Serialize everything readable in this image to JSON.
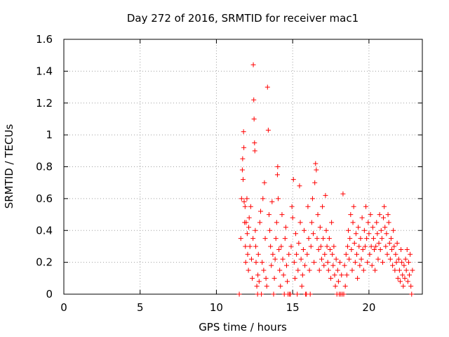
{
  "chart_data": {
    "type": "scatter",
    "title": "Day 272 of 2016, SRMTID for receiver mac1",
    "xlabel": "GPS time / hours",
    "ylabel": "SRMTID / TECUs",
    "xlim": [
      0,
      23.5
    ],
    "ylim": [
      0,
      1.6
    ],
    "xticks": [
      0,
      5,
      10,
      15,
      20
    ],
    "xtick_labels": [
      "0",
      "5",
      "10",
      "15",
      "20"
    ],
    "yticks": [
      0,
      0.2,
      0.4,
      0.6,
      0.8,
      1,
      1.2,
      1.4,
      1.6
    ],
    "ytick_labels": [
      "0",
      "0.2",
      "0.4",
      "0.6",
      "0.8",
      "1",
      "1.2",
      "1.4",
      "1.6"
    ],
    "grid": true,
    "marker": "+",
    "color": "#ff0000",
    "series": [
      {
        "name": "SRMTID",
        "points": [
          [
            11.5,
            0.0
          ],
          [
            11.6,
            0.35
          ],
          [
            11.65,
            0.6
          ],
          [
            11.7,
            0.78
          ],
          [
            11.72,
            0.85
          ],
          [
            11.75,
            0.72
          ],
          [
            11.78,
            1.02
          ],
          [
            11.8,
            0.92
          ],
          [
            11.82,
            0.58
          ],
          [
            11.85,
            0.45
          ],
          [
            11.88,
            0.55
          ],
          [
            11.9,
            0.3
          ],
          [
            11.92,
            0.2
          ],
          [
            11.95,
            0.45
          ],
          [
            12.0,
            0.6
          ],
          [
            12.02,
            0.38
          ],
          [
            12.05,
            0.25
          ],
          [
            12.1,
            0.15
          ],
          [
            12.12,
            0.42
          ],
          [
            12.15,
            0.48
          ],
          [
            12.2,
            0.3
          ],
          [
            12.25,
            0.55
          ],
          [
            12.3,
            0.22
          ],
          [
            12.35,
            0.1
          ],
          [
            12.4,
            0.35
          ],
          [
            12.42,
            1.44
          ],
          [
            12.45,
            1.22
          ],
          [
            12.47,
            1.1
          ],
          [
            12.5,
            0.95
          ],
          [
            12.52,
            0.9
          ],
          [
            12.55,
            0.4
          ],
          [
            12.58,
            0.3
          ],
          [
            12.6,
            0.2
          ],
          [
            12.65,
            0.05
          ],
          [
            12.7,
            0.0
          ],
          [
            12.72,
            0.12
          ],
          [
            12.75,
            0.25
          ],
          [
            12.8,
            0.08
          ],
          [
            12.85,
            0.45
          ],
          [
            12.9,
            0.52
          ],
          [
            12.95,
            0.0
          ],
          [
            13.0,
            0.2
          ],
          [
            13.05,
            0.6
          ],
          [
            13.1,
            0.15
          ],
          [
            13.15,
            0.7
          ],
          [
            13.2,
            0.35
          ],
          [
            13.25,
            0.1
          ],
          [
            13.3,
            0.05
          ],
          [
            13.35,
            1.3
          ],
          [
            13.4,
            1.03
          ],
          [
            13.45,
            0.5
          ],
          [
            13.5,
            0.4
          ],
          [
            13.55,
            0.3
          ],
          [
            13.6,
            0.18
          ],
          [
            13.65,
            0.58
          ],
          [
            13.7,
            0.25
          ],
          [
            13.75,
            0.0
          ],
          [
            13.8,
            0.1
          ],
          [
            13.85,
            0.22
          ],
          [
            13.9,
            0.35
          ],
          [
            13.95,
            0.45
          ],
          [
            14.0,
            0.75
          ],
          [
            14.02,
            0.8
          ],
          [
            14.05,
            0.6
          ],
          [
            14.1,
            0.28
          ],
          [
            14.15,
            0.15
          ],
          [
            14.2,
            0.05
          ],
          [
            14.25,
            0.3
          ],
          [
            14.3,
            0.5
          ],
          [
            14.35,
            0.22
          ],
          [
            14.4,
            0.12
          ],
          [
            14.45,
            0.0
          ],
          [
            14.5,
            0.35
          ],
          [
            14.55,
            0.42
          ],
          [
            14.6,
            0.18
          ],
          [
            14.65,
            0.08
          ],
          [
            14.7,
            0.0
          ],
          [
            14.75,
            0.25
          ],
          [
            14.8,
            0.0
          ],
          [
            14.85,
            0.0
          ],
          [
            14.9,
            0.3
          ],
          [
            14.95,
            0.55
          ],
          [
            15.0,
            0.48
          ],
          [
            15.05,
            0.72
          ],
          [
            15.1,
            0.2
          ],
          [
            15.15,
            0.1
          ],
          [
            15.2,
            0.38
          ],
          [
            15.25,
            0.25
          ],
          [
            15.3,
            0.0
          ],
          [
            15.35,
            0.15
          ],
          [
            15.4,
            0.32
          ],
          [
            15.45,
            0.68
          ],
          [
            15.5,
            0.45
          ],
          [
            15.55,
            0.22
          ],
          [
            15.6,
            0.05
          ],
          [
            15.65,
            0.12
          ],
          [
            15.7,
            0.28
          ],
          [
            15.75,
            0.4
          ],
          [
            15.8,
            0.18
          ],
          [
            15.85,
            0.0
          ],
          [
            15.9,
            0.0
          ],
          [
            15.95,
            0.25
          ],
          [
            16.0,
            0.55
          ],
          [
            16.05,
            0.35
          ],
          [
            16.1,
            0.15
          ],
          [
            16.15,
            0.0
          ],
          [
            16.2,
            0.3
          ],
          [
            16.25,
            0.45
          ],
          [
            16.3,
            0.6
          ],
          [
            16.35,
            0.38
          ],
          [
            16.4,
            0.2
          ],
          [
            16.45,
            0.7
          ],
          [
            16.5,
            0.82
          ],
          [
            16.55,
            0.78
          ],
          [
            16.6,
            0.35
          ],
          [
            16.65,
            0.5
          ],
          [
            16.7,
            0.28
          ],
          [
            16.75,
            0.15
          ],
          [
            16.8,
            0.42
          ],
          [
            16.85,
            0.3
          ],
          [
            16.9,
            0.22
          ],
          [
            16.95,
            0.55
          ],
          [
            17.0,
            0.35
          ],
          [
            17.05,
            0.18
          ],
          [
            17.1,
            0.25
          ],
          [
            17.15,
            0.62
          ],
          [
            17.2,
            0.4
          ],
          [
            17.25,
            0.3
          ],
          [
            17.3,
            0.2
          ],
          [
            17.35,
            0.15
          ],
          [
            17.4,
            0.35
          ],
          [
            17.45,
            0.28
          ],
          [
            17.5,
            0.1
          ],
          [
            17.55,
            0.45
          ],
          [
            17.6,
            0.25
          ],
          [
            17.65,
            0.18
          ],
          [
            17.7,
            0.3
          ],
          [
            17.75,
            0.12
          ],
          [
            17.8,
            0.05
          ],
          [
            17.85,
            0.22
          ],
          [
            17.9,
            0.0
          ],
          [
            17.95,
            0.15
          ],
          [
            18.0,
            0.08
          ],
          [
            18.05,
            0.0
          ],
          [
            18.1,
            0.2
          ],
          [
            18.15,
            0.0
          ],
          [
            18.2,
            0.12
          ],
          [
            18.25,
            0.0
          ],
          [
            18.3,
            0.63
          ],
          [
            18.35,
            0.0
          ],
          [
            18.4,
            0.18
          ],
          [
            18.45,
            0.05
          ],
          [
            18.5,
            0.25
          ],
          [
            18.55,
            0.12
          ],
          [
            18.6,
            0.3
          ],
          [
            18.65,
            0.4
          ],
          [
            18.7,
            0.22
          ],
          [
            18.75,
            0.35
          ],
          [
            18.8,
            0.5
          ],
          [
            18.85,
            0.28
          ],
          [
            18.9,
            0.15
          ],
          [
            18.95,
            0.45
          ],
          [
            19.0,
            0.55
          ],
          [
            19.05,
            0.32
          ],
          [
            19.1,
            0.2
          ],
          [
            19.15,
            0.38
          ],
          [
            19.2,
            0.25
          ],
          [
            19.25,
            0.1
          ],
          [
            19.3,
            0.42
          ],
          [
            19.35,
            0.3
          ],
          [
            19.4,
            0.18
          ],
          [
            19.45,
            0.35
          ],
          [
            19.5,
            0.22
          ],
          [
            19.55,
            0.48
          ],
          [
            19.6,
            0.28
          ],
          [
            19.65,
            0.15
          ],
          [
            19.7,
            0.4
          ],
          [
            19.75,
            0.3
          ],
          [
            19.8,
            0.55
          ],
          [
            19.85,
            0.35
          ],
          [
            19.9,
            0.2
          ],
          [
            19.95,
            0.45
          ],
          [
            20.0,
            0.38
          ],
          [
            20.05,
            0.25
          ],
          [
            20.1,
            0.5
          ],
          [
            20.15,
            0.3
          ],
          [
            20.2,
            0.18
          ],
          [
            20.25,
            0.42
          ],
          [
            20.3,
            0.35
          ],
          [
            20.35,
            0.28
          ],
          [
            20.4,
            0.15
          ],
          [
            20.45,
            0.3
          ],
          [
            20.5,
            0.45
          ],
          [
            20.55,
            0.38
          ],
          [
            20.6,
            0.22
          ],
          [
            20.65,
            0.32
          ],
          [
            20.7,
            0.5
          ],
          [
            20.75,
            0.28
          ],
          [
            20.8,
            0.4
          ],
          [
            20.85,
            0.35
          ],
          [
            20.9,
            0.2
          ],
          [
            20.95,
            0.48
          ],
          [
            21.0,
            0.55
          ],
          [
            21.05,
            0.42
          ],
          [
            21.1,
            0.3
          ],
          [
            21.15,
            0.38
          ],
          [
            21.2,
            0.25
          ],
          [
            21.25,
            0.5
          ],
          [
            21.3,
            0.45
          ],
          [
            21.35,
            0.32
          ],
          [
            21.4,
            0.22
          ],
          [
            21.45,
            0.35
          ],
          [
            21.5,
            0.28
          ],
          [
            21.55,
            0.18
          ],
          [
            21.6,
            0.4
          ],
          [
            21.65,
            0.3
          ],
          [
            21.7,
            0.15
          ],
          [
            21.75,
            0.25
          ],
          [
            21.8,
            0.2
          ],
          [
            21.85,
            0.32
          ],
          [
            21.9,
            0.1
          ],
          [
            21.95,
            0.22
          ],
          [
            22.0,
            0.15
          ],
          [
            22.05,
            0.08
          ],
          [
            22.1,
            0.28
          ],
          [
            22.15,
            0.2
          ],
          [
            22.2,
            0.12
          ],
          [
            22.25,
            0.05
          ],
          [
            22.3,
            0.18
          ],
          [
            22.35,
            0.1
          ],
          [
            22.4,
            0.22
          ],
          [
            22.45,
            0.15
          ],
          [
            22.5,
            0.28
          ],
          [
            22.55,
            0.08
          ],
          [
            22.6,
            0.2
          ],
          [
            22.65,
            0.12
          ],
          [
            22.7,
            0.25
          ],
          [
            22.75,
            0.05
          ],
          [
            22.8,
            0.0
          ],
          [
            22.85,
            0.15
          ]
        ]
      }
    ]
  }
}
